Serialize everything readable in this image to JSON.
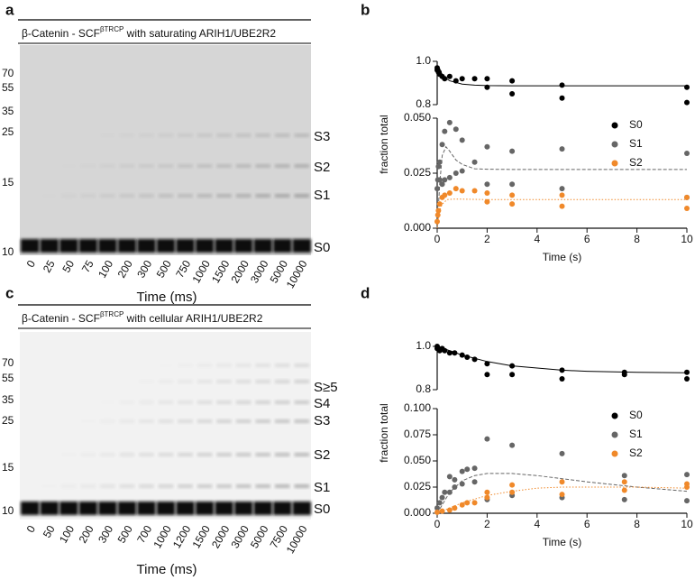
{
  "panel_letters": [
    "a",
    "b",
    "c",
    "d"
  ],
  "gels": [
    {
      "title_prefix": "β-Catenin - SCF",
      "title_sup": "βTRCP",
      "title_suffix": " with saturating ARIH1/UBE2R2",
      "markers": [
        70,
        55,
        35,
        25,
        15,
        10
      ],
      "lanes": [
        "0",
        "25",
        "50",
        "75",
        "100",
        "200",
        "300",
        "500",
        "750",
        "1000",
        "1500",
        "2000",
        "3000",
        "5000",
        "10000"
      ],
      "bands": [
        "S3",
        "S2",
        "S1",
        "S0"
      ],
      "xlabel": "Time (ms)"
    },
    {
      "title_prefix": "β-Catenin - SCF",
      "title_sup": "βTRCP",
      "title_suffix": " with cellular ARIH1/UBE2R2",
      "markers": [
        70,
        55,
        35,
        25,
        15,
        10
      ],
      "lanes": [
        "0",
        "50",
        "100",
        "200",
        "300",
        "500",
        "700",
        "1000",
        "1200",
        "1500",
        "2000",
        "3000",
        "5000",
        "7500",
        "10000"
      ],
      "bands": [
        "S≥5",
        "S4",
        "S3",
        "S2",
        "S1",
        "S0"
      ],
      "xlabel": "Time (ms)"
    }
  ],
  "chart_data": [
    {
      "type": "scatter",
      "xlabel": "Time (s)",
      "ylabel": "fraction total",
      "legend": "upper right",
      "xlim": [
        0,
        10
      ],
      "xticks": [
        0,
        2,
        4,
        6,
        8,
        10
      ],
      "ylim_upper": [
        0.8,
        1.0
      ],
      "yticks_upper": [
        0.8,
        {
          "value": 1.0,
          "label": "1.0"
        }
      ],
      "ylim": [
        0,
        0.05
      ],
      "yticks": [
        {
          "value": 0,
          "label": "0.000"
        },
        0.025,
        {
          "value": 0.05,
          "label": "0.050"
        }
      ],
      "series": [
        {
          "name": "S0",
          "color": "#000000",
          "axis": "upper",
          "fit_dash": "solid",
          "x": [
            0,
            0,
            0.025,
            0.05,
            0.075,
            0.1,
            0.2,
            0.3,
            0.5,
            0.75,
            1,
            1.5,
            2,
            2,
            3,
            3,
            5,
            5,
            10,
            10
          ],
          "values": [
            0.97,
            0.96,
            0.96,
            0.95,
            0.95,
            0.94,
            0.93,
            0.92,
            0.93,
            0.91,
            0.92,
            0.92,
            0.92,
            0.88,
            0.91,
            0.85,
            0.89,
            0.83,
            0.88,
            0.81
          ],
          "fit": {
            "x": [
              0,
              0.25,
              0.5,
              1,
              1.5,
              2,
              3,
              5,
              10
            ],
            "values": [
              0.97,
              0.93,
              0.91,
              0.895,
              0.89,
              0.888,
              0.887,
              0.887,
              0.887
            ]
          }
        },
        {
          "name": "S1",
          "color": "#666666",
          "axis": "lower",
          "fit_dash": "dashed",
          "x": [
            0,
            0.025,
            0.05,
            0.1,
            0.2,
            0.3,
            0.5,
            0.75,
            1,
            0.1,
            0.2,
            0.3,
            0.5,
            0.75,
            1,
            1.5,
            2,
            2,
            3,
            3,
            5,
            5,
            10,
            10
          ],
          "values": [
            0.018,
            0.022,
            0.028,
            0.03,
            0.038,
            0.044,
            0.048,
            0.045,
            0.04,
            0.022,
            0.02,
            0.022,
            0.023,
            0.025,
            0.026,
            0.03,
            0.037,
            0.02,
            0.035,
            0.02,
            0.036,
            0.018,
            0.034,
            0.014
          ],
          "fit": {
            "x": [
              0,
              0.1,
              0.2,
              0.35,
              0.5,
              0.75,
              1,
              1.5,
              2,
              3,
              5,
              10
            ],
            "values": [
              0,
              0.02,
              0.033,
              0.037,
              0.035,
              0.031,
              0.029,
              0.027,
              0.0268,
              0.0267,
              0.0267,
              0.0267
            ]
          }
        },
        {
          "name": "S2",
          "color": "#f0892a",
          "axis": "lower",
          "fit_dash": "dotted",
          "x": [
            0,
            0.025,
            0.05,
            0.1,
            0.2,
            0.3,
            0.5,
            0.75,
            1,
            1.5,
            2,
            2,
            3,
            3,
            5,
            5,
            10,
            10
          ],
          "values": [
            0.003,
            0.006,
            0.008,
            0.011,
            0.014,
            0.015,
            0.016,
            0.018,
            0.017,
            0.017,
            0.016,
            0.012,
            0.015,
            0.011,
            0.015,
            0.01,
            0.014,
            0.009
          ],
          "fit": {
            "x": [
              0,
              0.1,
              0.2,
              0.4,
              0.6,
              1,
              2,
              5,
              10
            ],
            "values": [
              0,
              0.008,
              0.011,
              0.013,
              0.0132,
              0.0132,
              0.013,
              0.013,
              0.013
            ]
          }
        }
      ]
    },
    {
      "type": "scatter",
      "xlabel": "Time (s)",
      "ylabel": "fraction total",
      "legend": "upper right",
      "xlim": [
        0,
        10
      ],
      "xticks": [
        0,
        2,
        4,
        6,
        8,
        10
      ],
      "ylim_upper": [
        0.8,
        1.0
      ],
      "yticks_upper": [
        0.8,
        {
          "value": 1.0,
          "label": "1.0"
        }
      ],
      "ylim": [
        0,
        0.1
      ],
      "yticks": [
        {
          "value": 0,
          "label": "0.000"
        },
        0.025,
        {
          "value": 0.05,
          "label": "0.050"
        },
        0.075,
        {
          "value": 0.1,
          "label": "0.100"
        }
      ],
      "series": [
        {
          "name": "S0",
          "color": "#000000",
          "axis": "upper",
          "fit_dash": "solid",
          "x": [
            0,
            0,
            0.05,
            0.1,
            0.2,
            0.3,
            0.5,
            0.7,
            1,
            1.2,
            1.5,
            2,
            2,
            3,
            3,
            5,
            5,
            7.5,
            7.5,
            10,
            10
          ],
          "values": [
            1.0,
            0.99,
            0.99,
            0.98,
            0.99,
            0.98,
            0.97,
            0.97,
            0.96,
            0.95,
            0.94,
            0.92,
            0.87,
            0.91,
            0.87,
            0.89,
            0.85,
            0.88,
            0.87,
            0.88,
            0.85
          ],
          "fit": {
            "x": [
              0,
              1,
              2,
              3,
              4,
              5,
              6,
              8,
              10
            ],
            "values": [
              1.0,
              0.96,
              0.93,
              0.91,
              0.9,
              0.89,
              0.885,
              0.88,
              0.878
            ]
          }
        },
        {
          "name": "S1",
          "color": "#666666",
          "axis": "lower",
          "fit_dash": "dashed",
          "x": [
            0,
            0.1,
            0.2,
            0.3,
            0.5,
            0.7,
            1,
            1.2,
            1.5,
            0.5,
            0.7,
            1,
            1.5,
            2,
            2,
            3,
            3,
            5,
            5,
            7.5,
            7.5,
            10,
            10
          ],
          "values": [
            0.005,
            0.01,
            0.015,
            0.02,
            0.035,
            0.032,
            0.04,
            0.042,
            0.043,
            0.02,
            0.025,
            0.028,
            0.03,
            0.071,
            0.013,
            0.065,
            0.017,
            0.057,
            0.015,
            0.036,
            0.013,
            0.037,
            0.012
          ],
          "fit": {
            "x": [
              0,
              0.5,
              1,
              1.5,
              2,
              3,
              4,
              5,
              6,
              8,
              10
            ],
            "values": [
              0,
              0.02,
              0.031,
              0.036,
              0.038,
              0.038,
              0.036,
              0.033,
              0.03,
              0.025,
              0.021
            ]
          }
        },
        {
          "name": "S2",
          "color": "#f0892a",
          "axis": "lower",
          "fit_dash": "dotted",
          "x": [
            0,
            0.2,
            0.5,
            0.7,
            1,
            1.2,
            1.5,
            2,
            2,
            3,
            3,
            5,
            5,
            7.5,
            7.5,
            10,
            10
          ],
          "values": [
            0.001,
            0.002,
            0.003,
            0.005,
            0.008,
            0.01,
            0.01,
            0.015,
            0.02,
            0.027,
            0.02,
            0.03,
            0.018,
            0.03,
            0.022,
            0.028,
            0.025
          ],
          "fit": {
            "x": [
              0,
              1,
              2,
              3,
              4,
              5,
              6,
              8,
              10
            ],
            "values": [
              0,
              0.01,
              0.017,
              0.021,
              0.024,
              0.025,
              0.025,
              0.025,
              0.024
            ]
          }
        }
      ]
    }
  ]
}
